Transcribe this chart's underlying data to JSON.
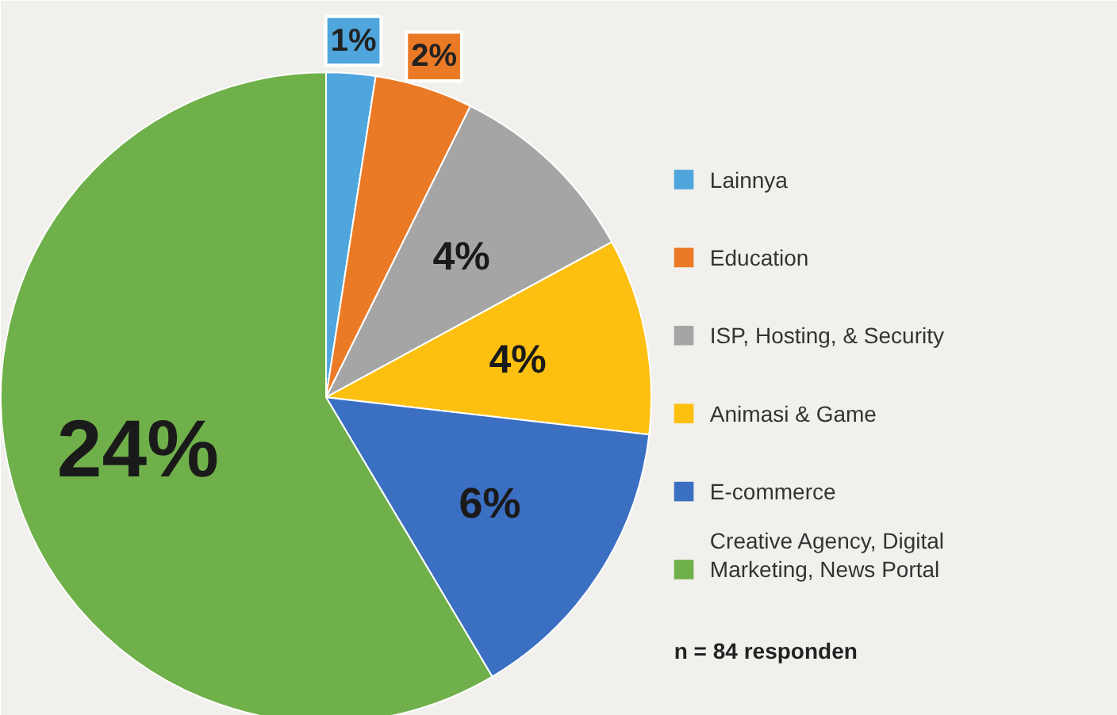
{
  "chart_data": {
    "type": "pie",
    "categories": [
      "Lainnya",
      "Education",
      "ISP, Hosting, & Security",
      "Animasi & Game",
      "E-commerce",
      "Creative Agency, Digital Marketing, News Portal"
    ],
    "values": [
      1,
      2,
      4,
      4,
      6,
      24
    ],
    "value_labels": [
      "1%",
      "2%",
      "4%",
      "4%",
      "6%",
      "24%"
    ],
    "colors": [
      "#4ea6dc",
      "#ea7a26",
      "#a5a5a5",
      "#fdc010",
      "#3b6fc2",
      "#6fb04a"
    ],
    "legend": "right",
    "annotations": [
      "n = 84 responden"
    ]
  }
}
